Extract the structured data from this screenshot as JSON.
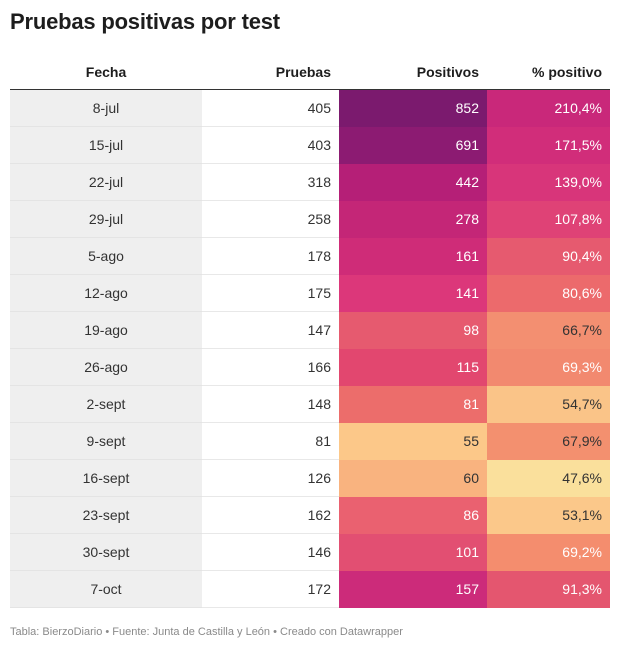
{
  "title": "Pruebas positivas por test",
  "footer": "Tabla: BierzoDiario • Fuente: Junta de Castilla y León • Creado con Datawrapper",
  "chart_data": {
    "type": "table",
    "title": "Pruebas positivas por test",
    "columns": [
      "Fecha",
      "Pruebas",
      "Positivos",
      "% positivo"
    ],
    "rows": [
      {
        "fecha": "8-jul",
        "pruebas": "405",
        "positivos": "852",
        "pct": "210,4%",
        "pos_color": "#7b1a6e",
        "pct_color": "#c9287a",
        "pos_text": "#ffffff",
        "pct_text": "#ffffff"
      },
      {
        "fecha": "15-jul",
        "pruebas": "403",
        "positivos": "691",
        "pct": "171,5%",
        "pos_color": "#8c1b72",
        "pct_color": "#d12d7a",
        "pos_text": "#ffffff",
        "pct_text": "#ffffff"
      },
      {
        "fecha": "22-jul",
        "pruebas": "318",
        "positivos": "442",
        "pct": "139,0%",
        "pos_color": "#b51f77",
        "pct_color": "#d8357a",
        "pos_text": "#ffffff",
        "pct_text": "#ffffff"
      },
      {
        "fecha": "29-jul",
        "pruebas": "258",
        "positivos": "278",
        "pct": "107,8%",
        "pos_color": "#c42677",
        "pct_color": "#df4276",
        "pos_text": "#ffffff",
        "pct_text": "#ffffff"
      },
      {
        "fecha": "5-ago",
        "pruebas": "178",
        "positivos": "161",
        "pct": "90,4%",
        "pos_color": "#cf2c78",
        "pct_color": "#e65a6f",
        "pos_text": "#ffffff",
        "pct_text": "#ffffff"
      },
      {
        "fecha": "12-ago",
        "pruebas": "175",
        "positivos": "141",
        "pct": "80,6%",
        "pos_color": "#dc377a",
        "pct_color": "#ec6a6c",
        "pos_text": "#ffffff",
        "pct_text": "#ffffff"
      },
      {
        "fecha": "19-ago",
        "pruebas": "147",
        "positivos": "98",
        "pct": "66,7%",
        "pos_color": "#e65a6f",
        "pct_color": "#f38f71",
        "pos_text": "#ffffff",
        "pct_text": "#333333"
      },
      {
        "fecha": "26-ago",
        "pruebas": "166",
        "positivos": "115",
        "pct": "69,3%",
        "pos_color": "#e2476f",
        "pct_color": "#f2896f",
        "pos_text": "#ffffff",
        "pct_text": "#ffffff"
      },
      {
        "fecha": "2-sept",
        "pruebas": "148",
        "positivos": "81",
        "pct": "54,7%",
        "pos_color": "#ec6d6b",
        "pct_color": "#fac488",
        "pos_text": "#ffffff",
        "pct_text": "#333333"
      },
      {
        "fecha": "9-sept",
        "pruebas": "81",
        "positivos": "55",
        "pct": "67,9%",
        "pos_color": "#fcc889",
        "pct_color": "#f3906f",
        "pos_text": "#333333",
        "pct_text": "#333333"
      },
      {
        "fecha": "16-sept",
        "pruebas": "126",
        "positivos": "60",
        "pct": "47,6%",
        "pos_color": "#f9b37f",
        "pct_color": "#fae09c",
        "pos_text": "#333333",
        "pct_text": "#333333"
      },
      {
        "fecha": "23-sept",
        "pruebas": "162",
        "positivos": "86",
        "pct": "53,1%",
        "pos_color": "#ea6170",
        "pct_color": "#fbc88a",
        "pos_text": "#ffffff",
        "pct_text": "#333333"
      },
      {
        "fecha": "30-sept",
        "pruebas": "146",
        "positivos": "101",
        "pct": "69,2%",
        "pos_color": "#e24f72",
        "pct_color": "#f48d6e",
        "pos_text": "#ffffff",
        "pct_text": "#ffffff"
      },
      {
        "fecha": "7-oct",
        "pruebas": "172",
        "positivos": "157",
        "pct": "91,3%",
        "pos_color": "#cc2b7a",
        "pct_color": "#e4566f",
        "pos_text": "#ffffff",
        "pct_text": "#ffffff"
      }
    ]
  }
}
